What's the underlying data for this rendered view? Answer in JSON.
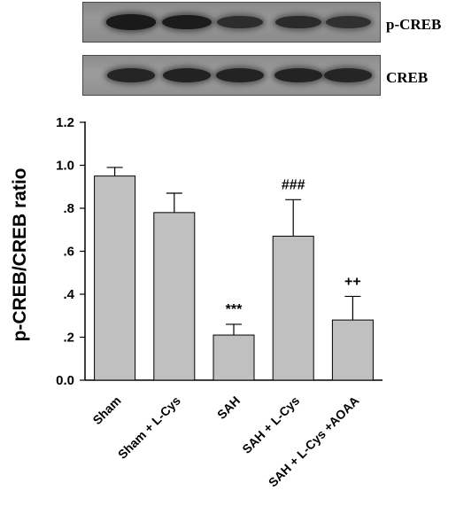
{
  "blot": {
    "label_top": "p-CREB",
    "label_bottom": "CREB",
    "top_band_intensity": [
      0.9,
      0.85,
      0.55,
      0.6,
      0.5
    ],
    "bottom_band_intensity": [
      0.7,
      0.75,
      0.72,
      0.72,
      0.7
    ]
  },
  "chart_data": {
    "type": "bar",
    "categories": [
      "Sham",
      "Sham + L-Cys",
      "SAH",
      "SAH + L-Cys",
      "SAH + L-Cys +AOAA"
    ],
    "values": [
      0.95,
      0.78,
      0.21,
      0.67,
      0.28
    ],
    "errors": [
      0.04,
      0.09,
      0.05,
      0.17,
      0.11
    ],
    "annotations": [
      "",
      "",
      "***",
      "###",
      "++"
    ],
    "ylabel": "p-CREB/CREB ratio",
    "xlabel": "",
    "ylim": [
      0,
      1.2
    ],
    "yticks": [
      0.0,
      0.2,
      0.4,
      0.6,
      0.8,
      1.0,
      1.2
    ],
    "ytick_labels": [
      "0.0",
      ".2",
      ".4",
      ".6",
      ".8",
      "1.0",
      "1.2"
    ],
    "bar_color": "#c0c0c0",
    "grid": false
  }
}
